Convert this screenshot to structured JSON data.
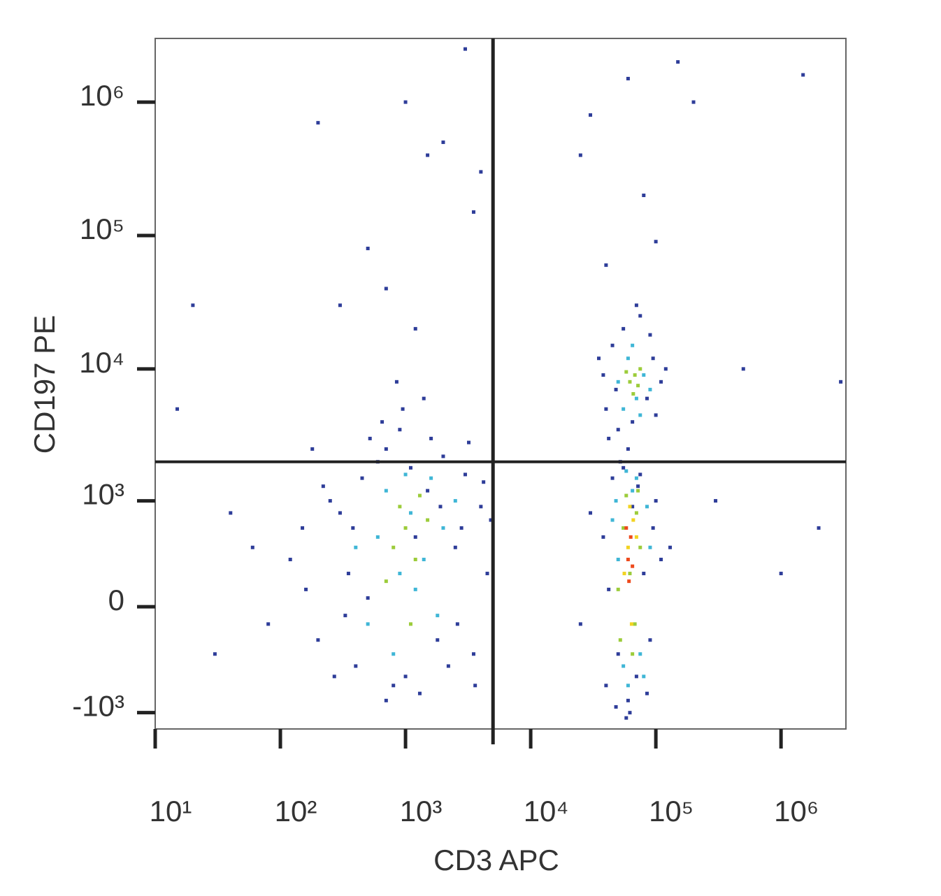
{
  "chart_data": {
    "type": "scatter",
    "x_label": "CD3 APC",
    "y_label": "CD197 PE",
    "xscale": "log",
    "yscale": "asinh",
    "xlim": [
      10,
      3300000
    ],
    "ylim": [
      -1340,
      3000000
    ],
    "xticks": [
      {
        "value": 10,
        "label": "10¹"
      },
      {
        "value": 100,
        "label": "10²"
      },
      {
        "value": 1000,
        "label": "10³"
      },
      {
        "value": 10000,
        "label": "10⁴"
      },
      {
        "value": 100000,
        "label": "10⁵"
      },
      {
        "value": 1000000,
        "label": "10⁶"
      }
    ],
    "yticks": [
      {
        "value": -1000,
        "label": "-10³"
      },
      0,
      {
        "value": 1000,
        "label": "10³"
      },
      {
        "value": 10000,
        "label": "10⁴"
      },
      {
        "value": 100000,
        "label": "10⁵"
      },
      {
        "value": 1000000,
        "label": "10⁶"
      }
    ],
    "quadrant_gate": {
      "x": 5000,
      "y": 2000
    },
    "series": [
      {
        "color": "#2e3d99",
        "x": [
          120,
          200,
          300,
          450,
          700,
          1000,
          1500,
          2500,
          3500,
          4000,
          150,
          250,
          400,
          600,
          900,
          1300,
          2000,
          3000,
          60,
          80,
          350,
          500,
          800,
          1100,
          1800,
          2800,
          4500,
          220,
          330,
          650,
          950,
          1600,
          2200,
          3200,
          40,
          30,
          700,
          1200,
          2600,
          4200,
          180,
          520,
          1400,
          850,
          380,
          270,
          1900,
          3600,
          160,
          4800,
          40000,
          45000,
          50000,
          55000,
          60000,
          65000,
          70000,
          75000,
          80000,
          90000,
          100000,
          38000,
          42000,
          52000,
          85000,
          95000,
          110000,
          48000,
          62000,
          72000,
          30000,
          25000,
          130000,
          58000,
          40000,
          45000,
          50000,
          55000,
          65000,
          75000,
          85000,
          95000,
          110000,
          38000,
          42000,
          100000,
          70000,
          60000,
          90000,
          48000,
          120000,
          35000,
          1000,
          2000,
          3000,
          500,
          300,
          200,
          3500,
          1500,
          30000,
          60000,
          80000,
          100000,
          40000,
          200000,
          500000,
          1500000,
          3000000,
          2000000,
          1000000,
          300000,
          20,
          15,
          700,
          1200,
          4000,
          25000,
          150000
        ],
        "values": [
          300,
          -200,
          800,
          1500,
          2500,
          -500,
          1200,
          400,
          -300,
          900,
          600,
          1000,
          -400,
          2000,
          3500,
          -700,
          2200,
          1600,
          400,
          -100,
          200,
          50,
          -600,
          1800,
          -200,
          600,
          200,
          1300,
          -50,
          4000,
          5000,
          3000,
          -400,
          2800,
          800,
          -300,
          -800,
          500,
          -100,
          1400,
          2500,
          3000,
          6000,
          8000,
          600,
          -500,
          900,
          -600,
          100,
          700,
          -600,
          1500,
          -300,
          1800,
          -800,
          900,
          -500,
          1600,
          200,
          -200,
          1000,
          500,
          100,
          2000,
          -700,
          600,
          300,
          -900,
          -1000,
          1300,
          800,
          -100,
          400,
          -1100,
          5000,
          15000,
          3500,
          20000,
          4000,
          25000,
          6000,
          12000,
          8000,
          9000,
          3000,
          4500,
          30000,
          2500,
          18000,
          7000,
          10000,
          12000,
          1000000,
          500000,
          2500000,
          80000,
          30000,
          700000,
          150000,
          400000,
          800000,
          1500000,
          200000,
          90000,
          60000,
          1000000,
          10000,
          1600000,
          8000,
          600,
          200,
          1000,
          30000,
          5000,
          40000,
          20000,
          300000,
          400000,
          2000000
        ]
      },
      {
        "color": "#3fb6d6",
        "x": [
          600,
          900,
          1100,
          700,
          1400,
          2000,
          500,
          1600,
          800,
          1200,
          2500,
          400,
          1000,
          1800,
          45000,
          55000,
          65000,
          75000,
          85000,
          50000,
          70000,
          60000,
          90000,
          48000,
          80000,
          58000,
          50000,
          60000,
          70000,
          80000,
          55000,
          90000,
          65000,
          75000
        ],
        "values": [
          500,
          200,
          800,
          1200,
          300,
          600,
          -100,
          1500,
          -300,
          100,
          1000,
          400,
          1600,
          -50,
          700,
          -400,
          1200,
          -300,
          900,
          300,
          1500,
          -600,
          400,
          1000,
          -500,
          1700,
          8000,
          12000,
          6000,
          9000,
          5000,
          7000,
          15000,
          4500
        ]
      },
      {
        "color": "#9ccc3a",
        "x": [
          800,
          1000,
          1200,
          900,
          700,
          1500,
          1100,
          1300,
          55000,
          62000,
          70000,
          50000,
          75000,
          65000,
          58000,
          68000,
          72000,
          52000,
          62000,
          68000,
          72000,
          58000,
          75000,
          66000
        ],
        "values": [
          400,
          600,
          300,
          900,
          150,
          700,
          -100,
          1100,
          600,
          200,
          800,
          100,
          400,
          -300,
          1100,
          -100,
          1200,
          -200,
          8000,
          9000,
          7500,
          9500,
          10000,
          6500
        ]
      },
      {
        "color": "#f2d321",
        "x": [
          60000,
          66000,
          56000,
          70000,
          62000,
          64000
        ],
        "values": [
          400,
          700,
          200,
          500,
          900,
          -100
        ]
      },
      {
        "color": "#ee4a1c",
        "x": [
          60000,
          63000,
          58000,
          65000,
          61000
        ],
        "values": [
          300,
          500,
          600,
          250,
          150
        ]
      }
    ]
  }
}
